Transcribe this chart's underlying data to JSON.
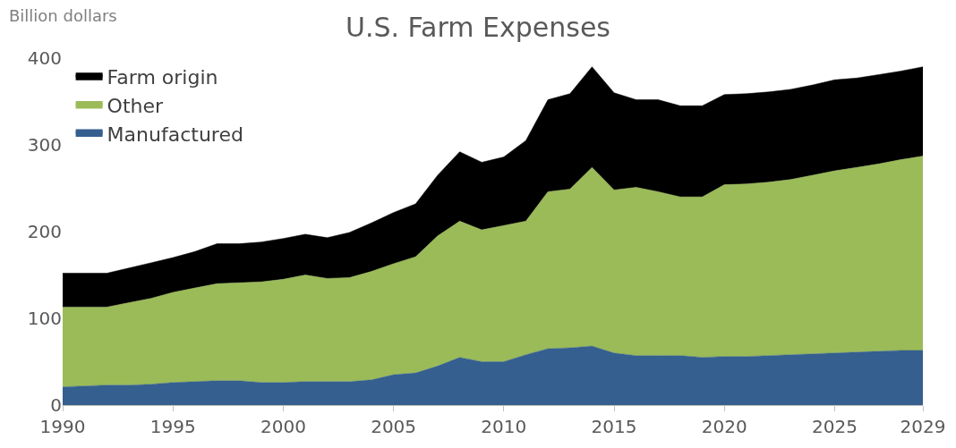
{
  "chart_data": {
    "type": "area",
    "stacked": true,
    "title": "U.S. Farm Expenses",
    "ylabel": "Billion dollars",
    "x": [
      1990,
      1991,
      1992,
      1993,
      1994,
      1995,
      1996,
      1997,
      1998,
      1999,
      2000,
      2001,
      2002,
      2003,
      2004,
      2005,
      2006,
      2007,
      2008,
      2009,
      2010,
      2011,
      2012,
      2013,
      2014,
      2015,
      2016,
      2017,
      2018,
      2019,
      2020,
      2021,
      2022,
      2023,
      2024,
      2025,
      2026,
      2027,
      2028,
      2029
    ],
    "series": [
      {
        "name": "Manufactured",
        "color": "#355f8f",
        "values": [
          21,
          22,
          23,
          23,
          24,
          26,
          27,
          28,
          28,
          26,
          26,
          27,
          27,
          27,
          29,
          35,
          37,
          45,
          55,
          50,
          50,
          58,
          65,
          66,
          68,
          60,
          57,
          57,
          57,
          55,
          56,
          56,
          57,
          58,
          59,
          60,
          61,
          62,
          63,
          63
        ]
      },
      {
        "name": "Other",
        "color": "#9bbb59",
        "values": [
          92,
          91,
          90,
          95,
          99,
          104,
          108,
          112,
          113,
          116,
          119,
          123,
          119,
          120,
          125,
          128,
          134,
          150,
          157,
          152,
          157,
          154,
          181,
          183,
          206,
          188,
          194,
          189,
          183,
          185,
          198,
          199,
          200,
          202,
          206,
          210,
          213,
          216,
          220,
          224
        ]
      },
      {
        "name": "Farm origin",
        "color": "#000000",
        "values": [
          39,
          39,
          39,
          40,
          41,
          40,
          42,
          46,
          45,
          46,
          47,
          47,
          47,
          52,
          56,
          59,
          61,
          70,
          80,
          78,
          79,
          93,
          106,
          110,
          116,
          112,
          101,
          106,
          105,
          105,
          104,
          104,
          104,
          104,
          104,
          105,
          103,
          103,
          102,
          103
        ]
      }
    ],
    "xlim": [
      1990,
      2029
    ],
    "xticks": [
      1990,
      1995,
      2000,
      2005,
      2010,
      2015,
      2020,
      2025,
      2029
    ],
    "ylim": [
      0,
      400
    ],
    "yticks": [
      0,
      100,
      200,
      300,
      400
    ],
    "grid": false,
    "legend": "top left"
  }
}
